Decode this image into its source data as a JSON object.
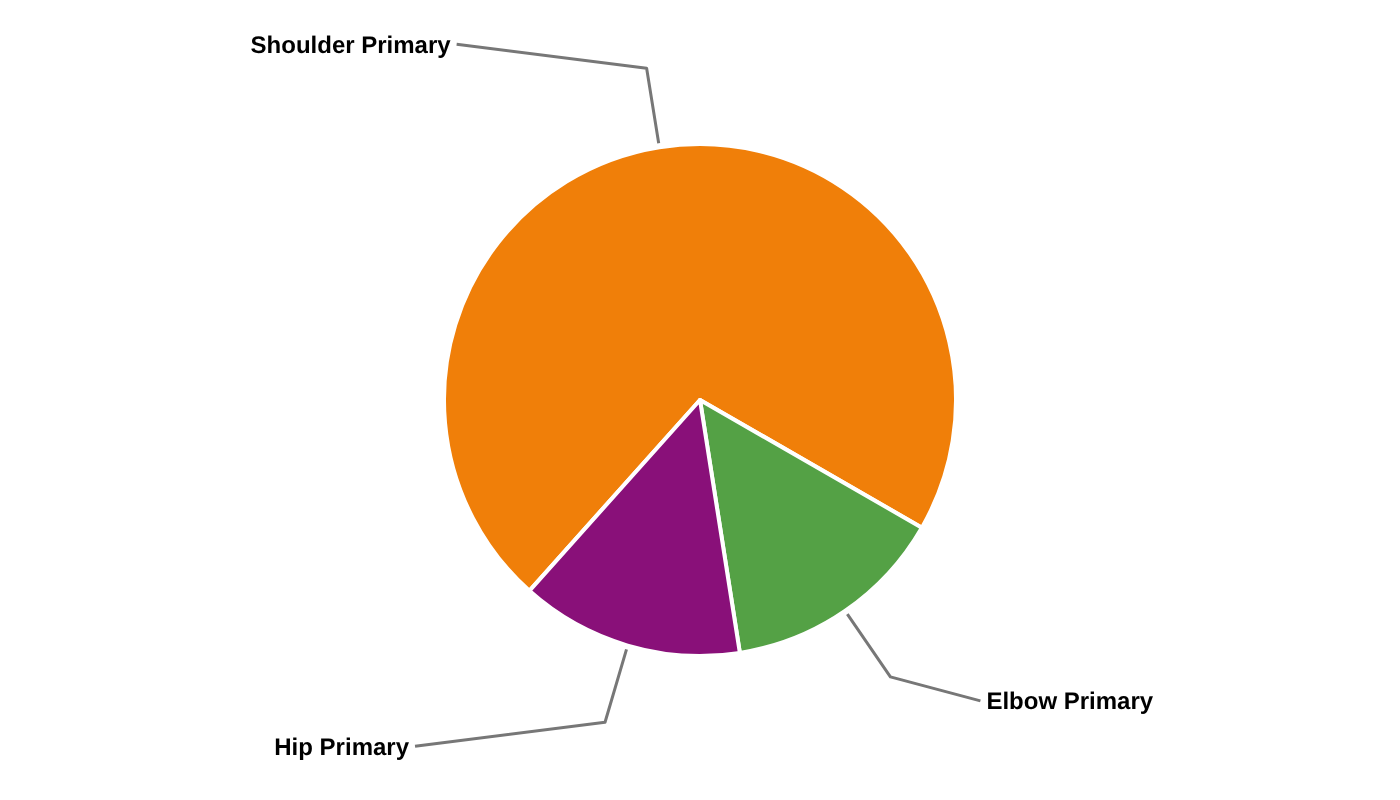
{
  "chart_data": {
    "type": "pie",
    "categories": [
      "Shoulder Primary",
      "Elbow Primary",
      "Hip Primary"
    ],
    "values": [
      71.7,
      14.2,
      14.1
    ],
    "colors": [
      "#f07f09",
      "#54a145",
      "#891079"
    ]
  }
}
